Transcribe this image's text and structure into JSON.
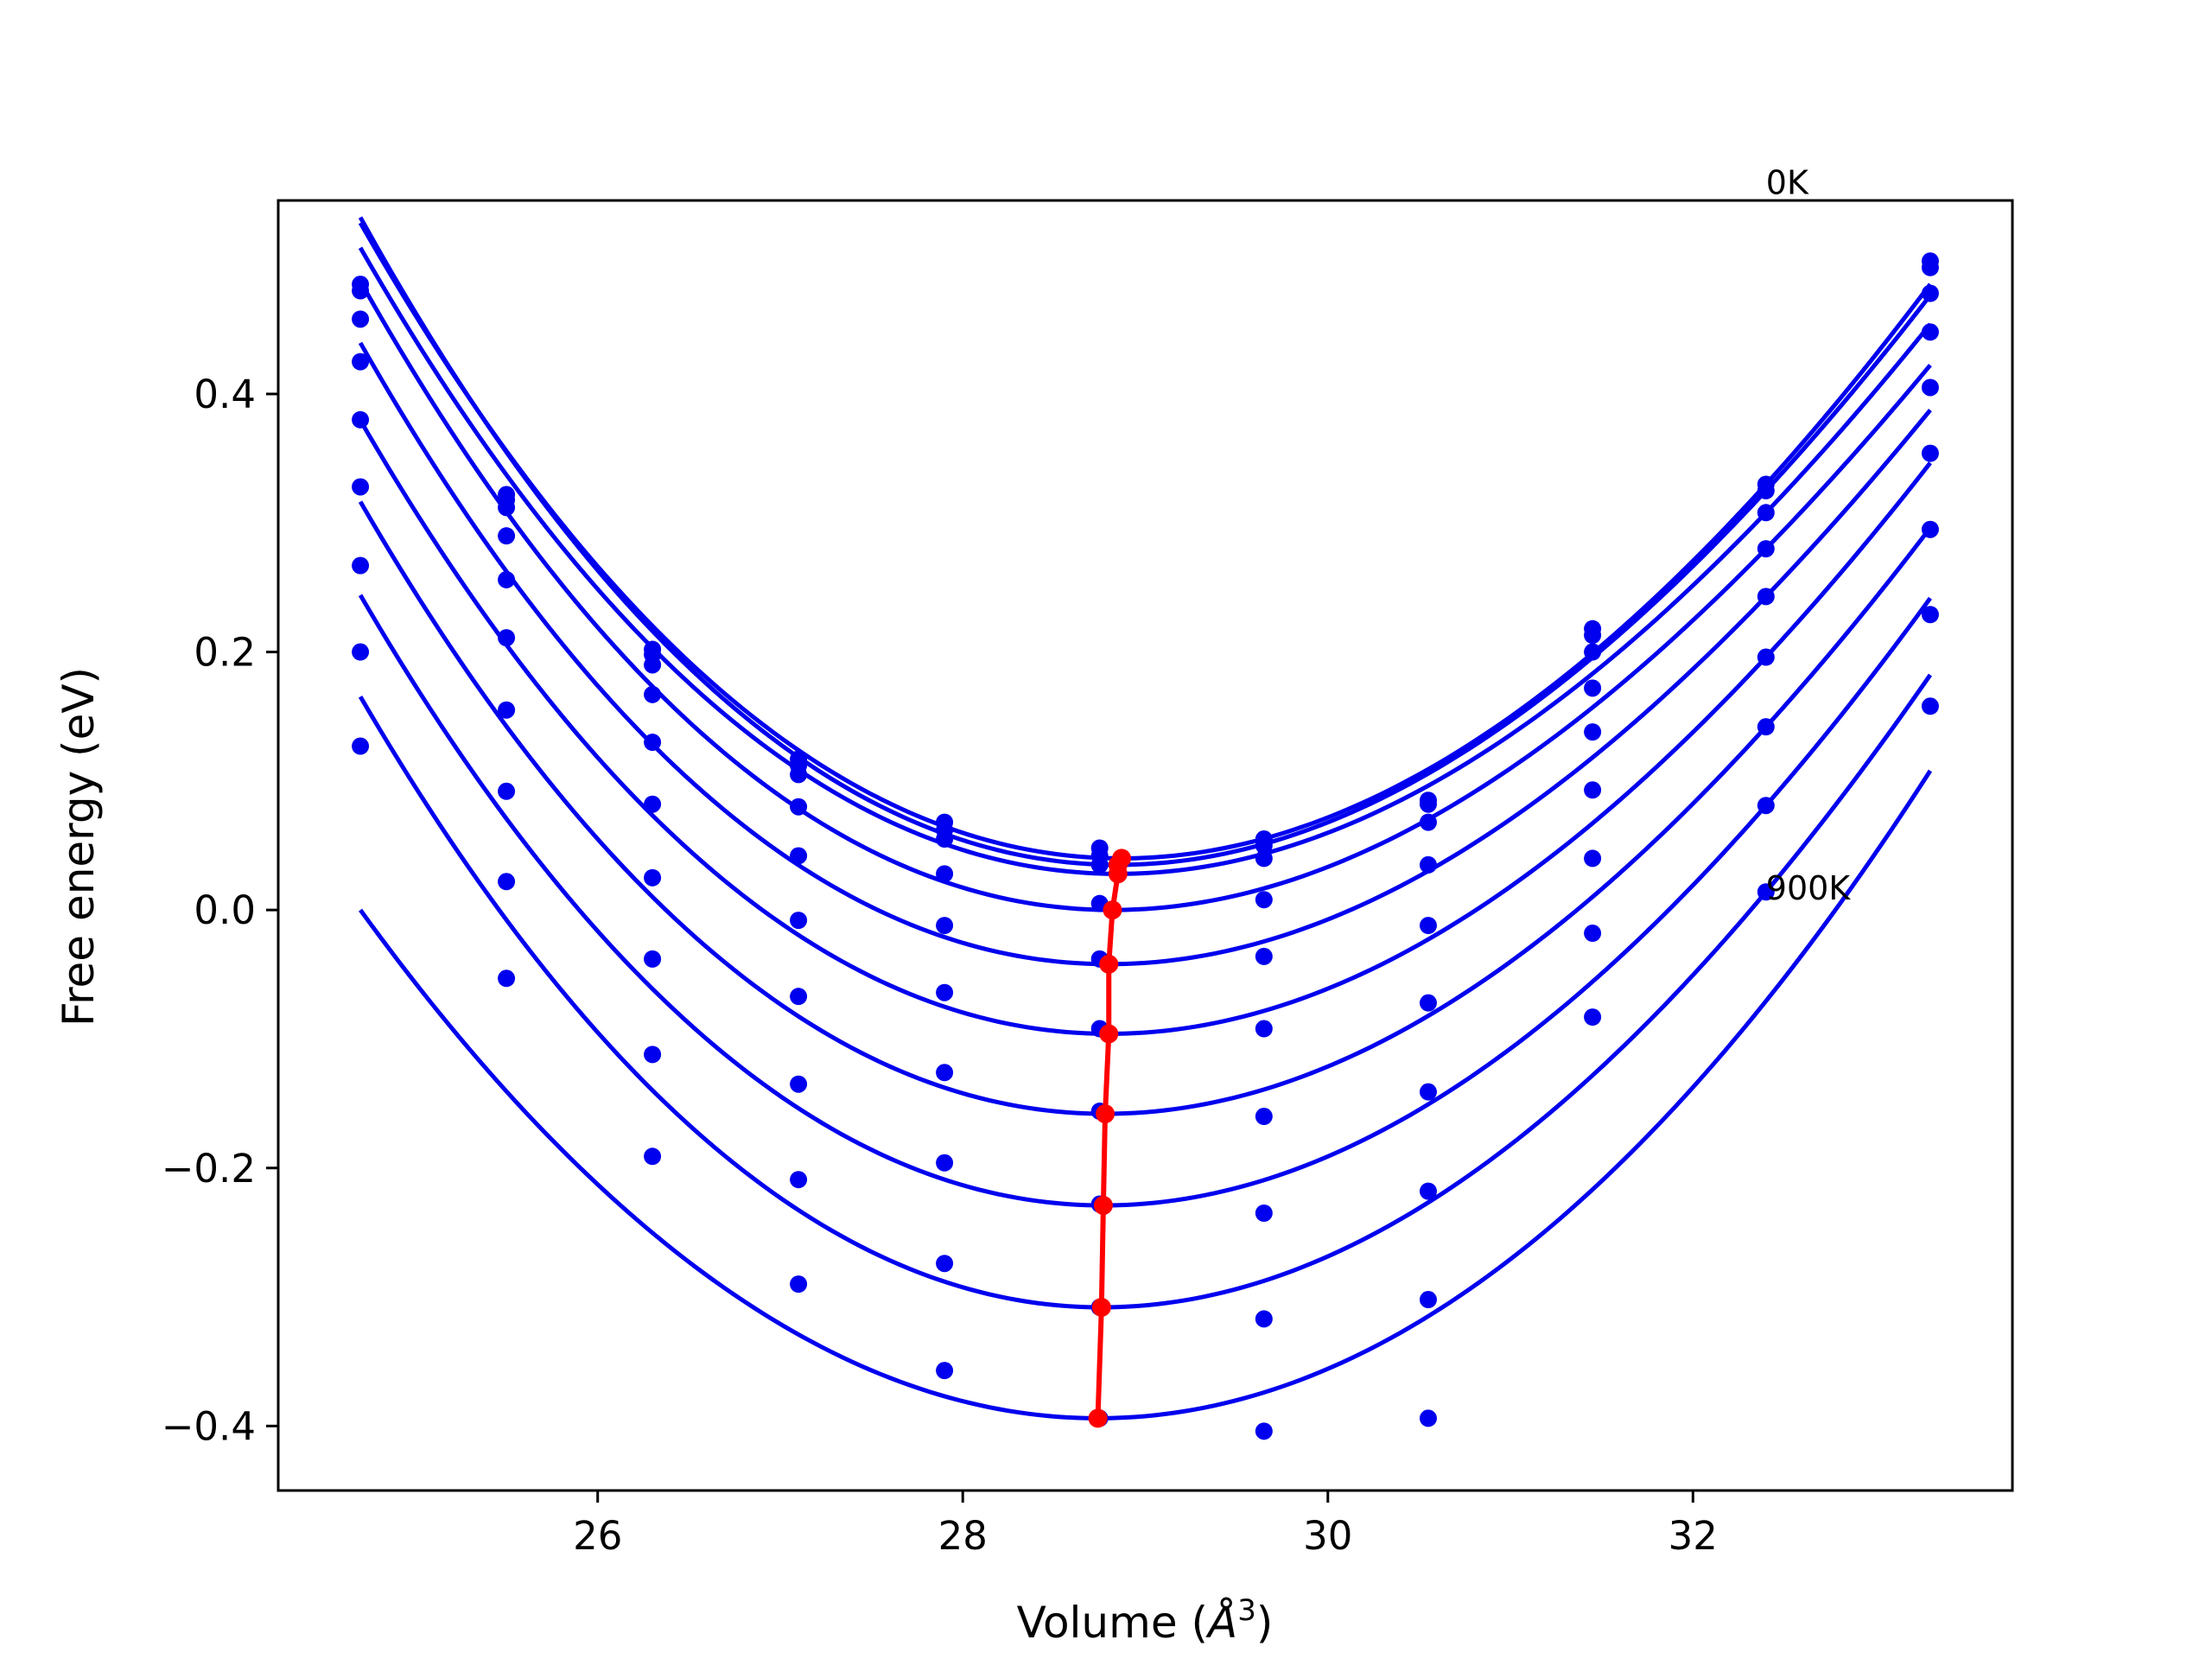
{
  "chart_data": {
    "type": "scatter",
    "title": "",
    "xlabel": "Volume (",
    "xlabel_symbol": "Å",
    "xlabel_sup": "3",
    "xlabel_close": ")",
    "ylabel": "Free energy (eV)",
    "xlim": [
      24.25,
      33.75
    ],
    "ylim": [
      -0.45,
      0.55
    ],
    "xticks": [
      26,
      28,
      30,
      32
    ],
    "xtick_labels": [
      "26",
      "28",
      "30",
      "32"
    ],
    "yticks": [
      0.4,
      0.2,
      0.0,
      -0.2,
      -0.4
    ],
    "ytick_labels": [
      "0.4",
      "0.2",
      "0.0",
      "−0.2",
      "−0.4"
    ],
    "grid": false,
    "annotations": [
      {
        "text": "0K",
        "x": 32.4,
        "y": 0.555
      },
      {
        "text": "900K",
        "x": 32.4,
        "y": 0.008
      }
    ],
    "colors": {
      "series": "#0000ee",
      "minimum": "#ff0000"
    },
    "x": [
      24.7,
      25.5,
      26.3,
      27.1,
      27.9,
      28.75,
      29.65,
      30.55,
      31.45,
      32.4,
      33.3
    ],
    "series": [
      {
        "values": [
          0.485,
          0.322,
          0.202,
          0.117,
          0.068,
          0.048,
          0.055,
          0.085,
          0.218,
          0.33,
          0.503
        ],
        "fit_min": [
          28.87,
          0.04
        ]
      },
      {
        "values": [
          0.48,
          0.318,
          0.198,
          0.112,
          0.062,
          0.042,
          0.05,
          0.082,
          0.213,
          0.325,
          0.498
        ],
        "fit_min": [
          28.85,
          0.035
        ]
      },
      {
        "values": [
          0.458,
          0.312,
          0.19,
          0.105,
          0.055,
          0.035,
          0.04,
          0.068,
          0.2,
          0.308,
          0.478
        ],
        "fit_min": [
          28.85,
          0.028
        ]
      },
      {
        "values": [
          0.425,
          0.29,
          0.167,
          0.08,
          0.028,
          0.005,
          0.008,
          0.035,
          0.172,
          0.28,
          0.448
        ],
        "fit_min": [
          28.82,
          0.0
        ]
      },
      {
        "values": [
          0.38,
          0.256,
          0.13,
          0.042,
          -0.012,
          -0.038,
          -0.036,
          -0.012,
          0.138,
          0.243,
          0.405
        ],
        "fit_min": [
          28.8,
          -0.042
        ]
      },
      {
        "values": [
          0.328,
          0.211,
          0.082,
          -0.008,
          -0.064,
          -0.092,
          -0.092,
          -0.072,
          0.093,
          0.196,
          0.354
        ],
        "fit_min": [
          28.8,
          -0.096
        ]
      },
      {
        "values": [
          0.267,
          0.155,
          0.025,
          -0.067,
          -0.126,
          -0.156,
          -0.16,
          -0.141,
          0.04,
          0.142,
          0.295
        ],
        "fit_min": [
          28.78,
          -0.158
        ]
      },
      {
        "values": [
          0.2,
          0.092,
          -0.038,
          -0.135,
          -0.196,
          -0.228,
          -0.235,
          -0.218,
          -0.018,
          0.081,
          0.229
        ],
        "fit_min": [
          28.77,
          -0.229
        ]
      },
      {
        "values": [
          0.127,
          0.022,
          -0.112,
          -0.209,
          -0.274,
          -0.308,
          -0.317,
          -0.302,
          -0.083,
          0.014,
          0.158
        ],
        "fit_min": [
          28.76,
          -0.308
        ]
      },
      {
        "values": [
          null,
          -0.053,
          -0.191,
          -0.29,
          -0.357,
          -0.394,
          -0.404,
          -0.394,
          null,
          null,
          null
        ],
        "fit_min": [
          28.74,
          -0.394
        ]
      }
    ]
  }
}
